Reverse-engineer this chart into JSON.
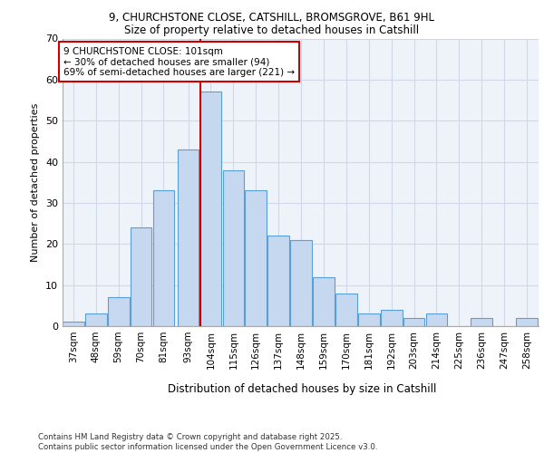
{
  "title1": "9, CHURCHSTONE CLOSE, CATSHILL, BROMSGROVE, B61 9HL",
  "title2": "Size of property relative to detached houses in Catshill",
  "xlabel": "Distribution of detached houses by size in Catshill",
  "ylabel": "Number of detached properties",
  "bins": [
    "37sqm",
    "48sqm",
    "59sqm",
    "70sqm",
    "81sqm",
    "93sqm",
    "104sqm",
    "115sqm",
    "126sqm",
    "137sqm",
    "148sqm",
    "159sqm",
    "170sqm",
    "181sqm",
    "192sqm",
    "203sqm",
    "214sqm",
    "225sqm",
    "236sqm",
    "247sqm",
    "258sqm"
  ],
  "values": [
    1,
    3,
    7,
    24,
    33,
    43,
    57,
    38,
    33,
    22,
    21,
    12,
    8,
    3,
    4,
    2,
    3,
    0,
    2,
    0,
    2
  ],
  "bar_color": "#c5d8f0",
  "bar_edge_color": "#5a9fd4",
  "grid_color": "#d0d8e8",
  "background_color": "#eef3fa",
  "vline_color": "#cc0000",
  "annotation_text": "9 CHURCHSTONE CLOSE: 101sqm\n← 30% of detached houses are smaller (94)\n69% of semi-detached houses are larger (221) →",
  "annotation_box_color": "#cc0000",
  "footnote": "Contains HM Land Registry data © Crown copyright and database right 2025.\nContains public sector information licensed under the Open Government Licence v3.0.",
  "ylim": [
    0,
    70
  ],
  "yticks": [
    0,
    10,
    20,
    30,
    40,
    50,
    60,
    70
  ],
  "bin_width": 11,
  "bin_starts": [
    37,
    48,
    59,
    70,
    81,
    93,
    104,
    115,
    126,
    137,
    148,
    159,
    170,
    181,
    192,
    203,
    214,
    225,
    236,
    247,
    258
  ]
}
